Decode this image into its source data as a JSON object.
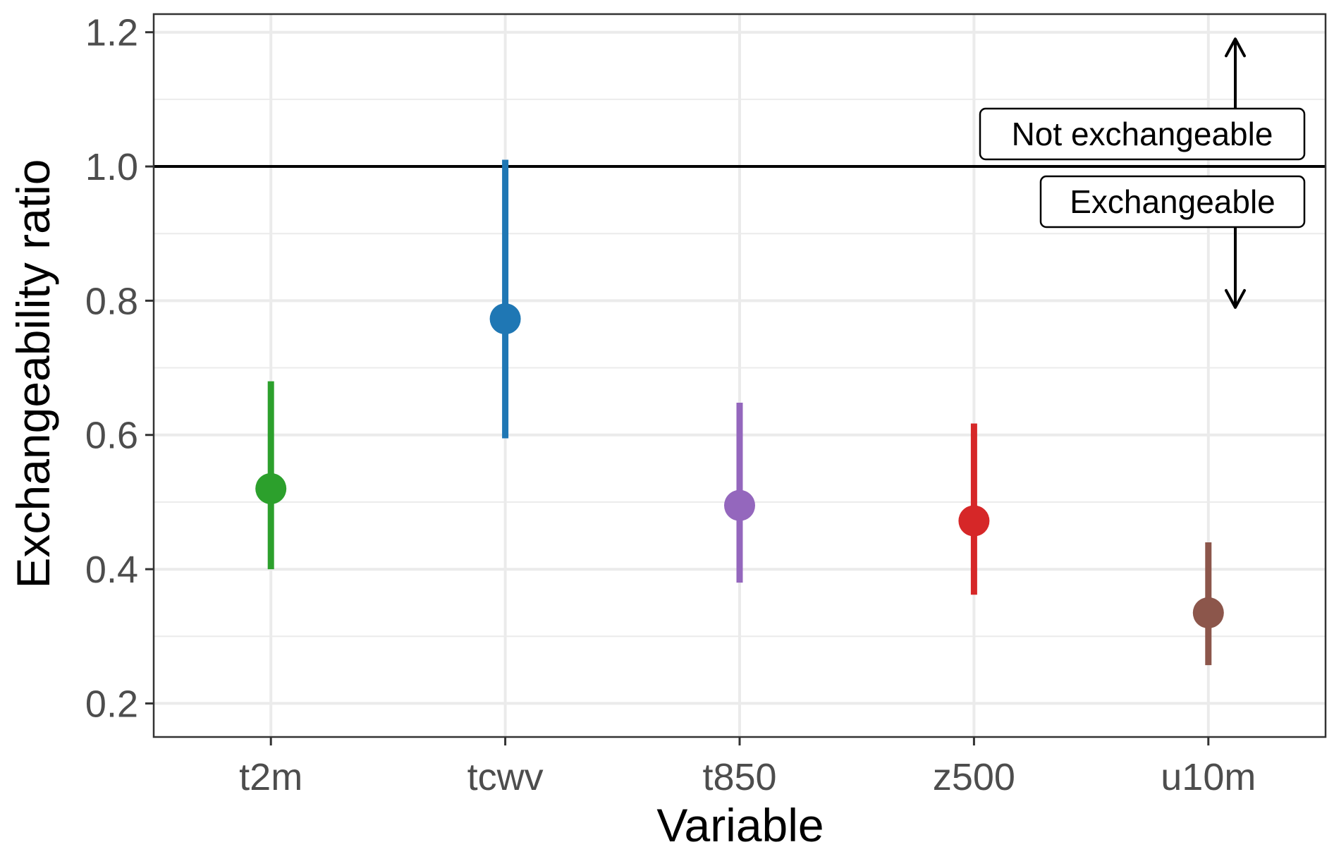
{
  "chart_data": {
    "type": "scatter",
    "subtype": "point-range",
    "title": "",
    "xlabel": "Variable",
    "ylabel": "Exchangeability ratio",
    "categories": [
      "t2m",
      "tcwv",
      "t850",
      "z500",
      "u10m"
    ],
    "points": [
      {
        "category": "t2m",
        "estimate": 0.52,
        "lower": 0.4,
        "upper": 0.68,
        "color": "#2ca02c"
      },
      {
        "category": "tcwv",
        "estimate": 0.773,
        "lower": 0.595,
        "upper": 1.01,
        "color": "#1f77b4"
      },
      {
        "category": "t850",
        "estimate": 0.495,
        "lower": 0.38,
        "upper": 0.648,
        "color": "#9467bd"
      },
      {
        "category": "z500",
        "estimate": 0.472,
        "lower": 0.362,
        "upper": 0.617,
        "color": "#d62728"
      },
      {
        "category": "u10m",
        "estimate": 0.335,
        "lower": 0.257,
        "upper": 0.44,
        "color": "#8c564b"
      }
    ],
    "ylim": [
      0.15,
      1.227
    ],
    "yticks": [
      {
        "value": 0.2,
        "label": "0.2"
      },
      {
        "value": 0.4,
        "label": "0.4"
      },
      {
        "value": 0.6,
        "label": "0.6"
      },
      {
        "value": 0.8,
        "label": "0.8"
      },
      {
        "value": 1.0,
        "label": "1.0"
      },
      {
        "value": 1.2,
        "label": "1.2"
      }
    ],
    "minor_y_gridlines": [
      0.3,
      0.5,
      0.7,
      0.9,
      1.1
    ],
    "grid": true,
    "legend": "none",
    "reference_line": {
      "value": 1.0,
      "color": "#000000"
    },
    "annotations": {
      "above": "Not exchangeable",
      "below": "Exchangeable",
      "arrow_up_to": 1.19,
      "arrow_down_to": 0.79
    }
  }
}
